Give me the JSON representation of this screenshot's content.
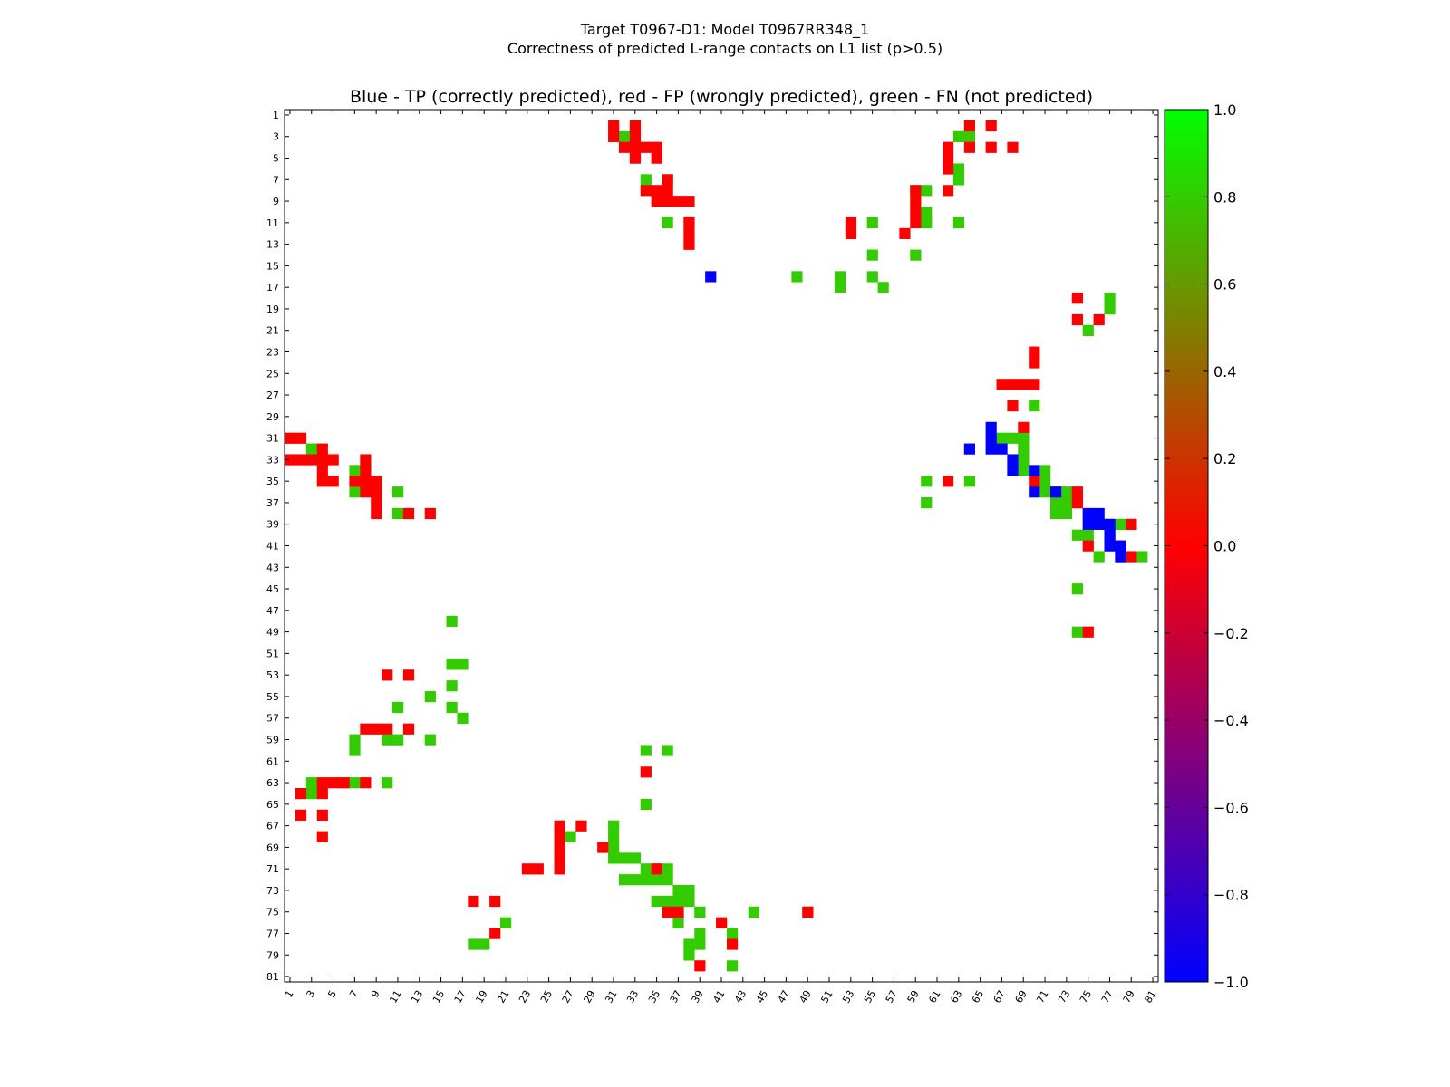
{
  "chart_data": {
    "type": "heatmap",
    "title_line1": "Target T0967-D1: Model T0967RR348_1",
    "title_line2": "Correctness of predicted L-range contacts on L1 list (p>0.5)",
    "subtitle": "Blue - TP (correctly predicted), red - FP (wrongly predicted), green - FN (not predicted)",
    "matrix_size": 81,
    "x_ticks": [
      "1",
      "3",
      "5",
      "7",
      "9",
      "11",
      "13",
      "15",
      "17",
      "19",
      "21",
      "23",
      "25",
      "27",
      "29",
      "31",
      "33",
      "35",
      "37",
      "39",
      "41",
      "43",
      "45",
      "47",
      "49",
      "51",
      "53",
      "55",
      "57",
      "59",
      "61",
      "63",
      "65",
      "67",
      "69",
      "71",
      "73",
      "75",
      "77",
      "79",
      "81"
    ],
    "y_ticks": [
      "1",
      "3",
      "5",
      "7",
      "9",
      "11",
      "13",
      "15",
      "17",
      "19",
      "21",
      "23",
      "25",
      "27",
      "29",
      "31",
      "33",
      "35",
      "37",
      "39",
      "41",
      "43",
      "45",
      "47",
      "49",
      "51",
      "53",
      "55",
      "57",
      "59",
      "61",
      "63",
      "65",
      "67",
      "69",
      "71",
      "73",
      "75",
      "77",
      "79",
      "81"
    ],
    "colorbar": {
      "min": -1.0,
      "max": 1.0,
      "tick_labels": [
        "1.0",
        "0.8",
        "0.6",
        "0.4",
        "0.2",
        "0.0",
        "−0.2",
        "−0.4",
        "−0.6",
        "−0.8",
        "−1.0"
      ],
      "tick_values": [
        1.0,
        0.8,
        0.6,
        0.4,
        0.2,
        0.0,
        -0.2,
        -0.4,
        -0.6,
        -0.8,
        -1.0
      ],
      "colors": {
        "low": "#0000ff",
        "mid": "#ff0000",
        "high": "#00ff00"
      }
    },
    "legend": {
      "tp_color": "#0000ff",
      "fp_color": "#ff0000",
      "fn_color": "#33cc00"
    },
    "grid": false,
    "tp_cells": [
      [
        16,
        40
      ],
      [
        30,
        66
      ],
      [
        31,
        66
      ],
      [
        32,
        66
      ],
      [
        32,
        64
      ],
      [
        32,
        67
      ],
      [
        33,
        68
      ],
      [
        34,
        68
      ],
      [
        34,
        70
      ],
      [
        36,
        70
      ],
      [
        36,
        72
      ],
      [
        38,
        75
      ],
      [
        38,
        76
      ],
      [
        39,
        75
      ],
      [
        39,
        76
      ],
      [
        39,
        77
      ],
      [
        40,
        77
      ],
      [
        41,
        77
      ],
      [
        41,
        78
      ],
      [
        42,
        78
      ]
    ],
    "fp_cells": [
      [
        2,
        31
      ],
      [
        2,
        33
      ],
      [
        3,
        31
      ],
      [
        3,
        33
      ],
      [
        4,
        32
      ],
      [
        4,
        33
      ],
      [
        4,
        34
      ],
      [
        4,
        35
      ],
      [
        5,
        33
      ],
      [
        5,
        35
      ],
      [
        7,
        36
      ],
      [
        8,
        34
      ],
      [
        8,
        35
      ],
      [
        8,
        36
      ],
      [
        9,
        35
      ],
      [
        9,
        36
      ],
      [
        9,
        37
      ],
      [
        9,
        38
      ],
      [
        11,
        38
      ],
      [
        13,
        38
      ],
      [
        2,
        64
      ],
      [
        2,
        66
      ],
      [
        4,
        66
      ],
      [
        4,
        68
      ],
      [
        4,
        64
      ],
      [
        4,
        62
      ],
      [
        5,
        62
      ],
      [
        6,
        62
      ],
      [
        8,
        62
      ],
      [
        8,
        59
      ],
      [
        9,
        59
      ],
      [
        10,
        59
      ],
      [
        11,
        53
      ],
      [
        11,
        59
      ],
      [
        12,
        53
      ],
      [
        12,
        58
      ],
      [
        12,
        38
      ],
      [
        18,
        74
      ],
      [
        20,
        74
      ],
      [
        20,
        76
      ],
      [
        23,
        70
      ],
      [
        24,
        70
      ],
      [
        26,
        67
      ],
      [
        26,
        68
      ],
      [
        26,
        69
      ],
      [
        26,
        70
      ],
      [
        28,
        68
      ],
      [
        30,
        69
      ],
      [
        31,
        1
      ],
      [
        31,
        2
      ],
      [
        32,
        4
      ],
      [
        33,
        1
      ],
      [
        33,
        2
      ],
      [
        33,
        3
      ],
      [
        33,
        4
      ],
      [
        33,
        5
      ],
      [
        33,
        8
      ],
      [
        34,
        8
      ],
      [
        34,
        4
      ],
      [
        35,
        4
      ],
      [
        35,
        5
      ],
      [
        35,
        7
      ],
      [
        35,
        8
      ],
      [
        35,
        9
      ],
      [
        36,
        8
      ],
      [
        36,
        9
      ],
      [
        37,
        9
      ],
      [
        38,
        9
      ],
      [
        38,
        12
      ],
      [
        38,
        14
      ],
      [
        35,
        62
      ],
      [
        35,
        70
      ],
      [
        36,
        74
      ],
      [
        37,
        74
      ],
      [
        39,
        79
      ],
      [
        41,
        75
      ],
      [
        42,
        78
      ],
      [
        42,
        79
      ],
      [
        49,
        75
      ],
      [
        53,
        10
      ],
      [
        53,
        12
      ],
      [
        58,
        8
      ],
      [
        58,
        9
      ],
      [
        58,
        10
      ],
      [
        58,
        12
      ],
      [
        62,
        34
      ],
      [
        63,
        4
      ],
      [
        63,
        5
      ],
      [
        63,
        6
      ],
      [
        63,
        8
      ],
      [
        64,
        4
      ],
      [
        64,
        2
      ],
      [
        66,
        2
      ],
      [
        66,
        4
      ],
      [
        68,
        4
      ],
      [
        67,
        26
      ],
      [
        68,
        26
      ],
      [
        69,
        26
      ],
      [
        70,
        26
      ],
      [
        67,
        28
      ],
      [
        71,
        23
      ],
      [
        71,
        24
      ],
      [
        71,
        26
      ],
      [
        69,
        30
      ],
      [
        71,
        35
      ],
      [
        74,
        18
      ],
      [
        74,
        20
      ],
      [
        75,
        36
      ],
      [
        75,
        37
      ],
      [
        75,
        49
      ],
      [
        76,
        41
      ],
      [
        77,
        20
      ],
      [
        78,
        42
      ],
      [
        80,
        39
      ]
    ],
    "fn_cells": [
      [
        3,
        32
      ],
      [
        7,
        34
      ],
      [
        7,
        36
      ],
      [
        9,
        36
      ],
      [
        11,
        36
      ],
      [
        11,
        38
      ],
      [
        8,
        59
      ],
      [
        8,
        60
      ],
      [
        10,
        60
      ],
      [
        11,
        55
      ],
      [
        11,
        60
      ],
      [
        11,
        63
      ],
      [
        14,
        55
      ],
      [
        14,
        59
      ],
      [
        16,
        48
      ],
      [
        16,
        52
      ],
      [
        16,
        55
      ],
      [
        17,
        52
      ],
      [
        17,
        56
      ],
      [
        3,
        63
      ],
      [
        3,
        64
      ],
      [
        6,
        63
      ],
      [
        7,
        63
      ],
      [
        18,
        77
      ],
      [
        19,
        77
      ],
      [
        21,
        75
      ],
      [
        28,
        70
      ],
      [
        31,
        67
      ],
      [
        31,
        68
      ],
      [
        31,
        69
      ],
      [
        32,
        69
      ],
      [
        33,
        69
      ],
      [
        34,
        69
      ],
      [
        34,
        71
      ],
      [
        35,
        60
      ],
      [
        35,
        64
      ],
      [
        35,
        71
      ],
      [
        36,
        71
      ],
      [
        36,
        73
      ],
      [
        37,
        60
      ],
      [
        37,
        72
      ],
      [
        37,
        73
      ],
      [
        38,
        72
      ],
      [
        38,
        73
      ],
      [
        38,
        75
      ],
      [
        39,
        78
      ],
      [
        40,
        74
      ],
      [
        40,
        75
      ],
      [
        40,
        77
      ],
      [
        42,
        76
      ],
      [
        42,
        80
      ],
      [
        45,
        74
      ],
      [
        49,
        74
      ],
      [
        32,
        3
      ],
      [
        34,
        7
      ],
      [
        36,
        7
      ],
      [
        36,
        11
      ],
      [
        38,
        11
      ],
      [
        48,
        16
      ],
      [
        52,
        16
      ],
      [
        52,
        17
      ],
      [
        54,
        16
      ],
      [
        55,
        14
      ],
      [
        56,
        11
      ],
      [
        56,
        16
      ],
      [
        57,
        17
      ],
      [
        59,
        7
      ],
      [
        59,
        10
      ],
      [
        59,
        11
      ],
      [
        59,
        14
      ],
      [
        60,
        7
      ],
      [
        60,
        34
      ],
      [
        60,
        36
      ],
      [
        63,
        3
      ],
      [
        63,
        6
      ],
      [
        63,
        7
      ],
      [
        63,
        10
      ],
      [
        64,
        3
      ],
      [
        65,
        34
      ],
      [
        67,
        31
      ],
      [
        68,
        27
      ],
      [
        68,
        31
      ],
      [
        69,
        31
      ],
      [
        70,
        31
      ],
      [
        70,
        32
      ],
      [
        70,
        33
      ],
      [
        71,
        34
      ],
      [
        71,
        35
      ],
      [
        71,
        36
      ],
      [
        72,
        32
      ],
      [
        72,
        33
      ],
      [
        72,
        34
      ],
      [
        72,
        35
      ],
      [
        72,
        36
      ],
      [
        73,
        37
      ],
      [
        73,
        38
      ],
      [
        74,
        35
      ],
      [
        74,
        36
      ],
      [
        74,
        37
      ],
      [
        74,
        38
      ],
      [
        75,
        39
      ],
      [
        75,
        44
      ],
      [
        75,
        49
      ],
      [
        76,
        21
      ],
      [
        76,
        37
      ],
      [
        77,
        39
      ],
      [
        77,
        42
      ],
      [
        78,
        18
      ],
      [
        78,
        19
      ],
      [
        78,
        38
      ],
      [
        78,
        39
      ],
      [
        79,
        38
      ],
      [
        80,
        42
      ]
    ]
  }
}
